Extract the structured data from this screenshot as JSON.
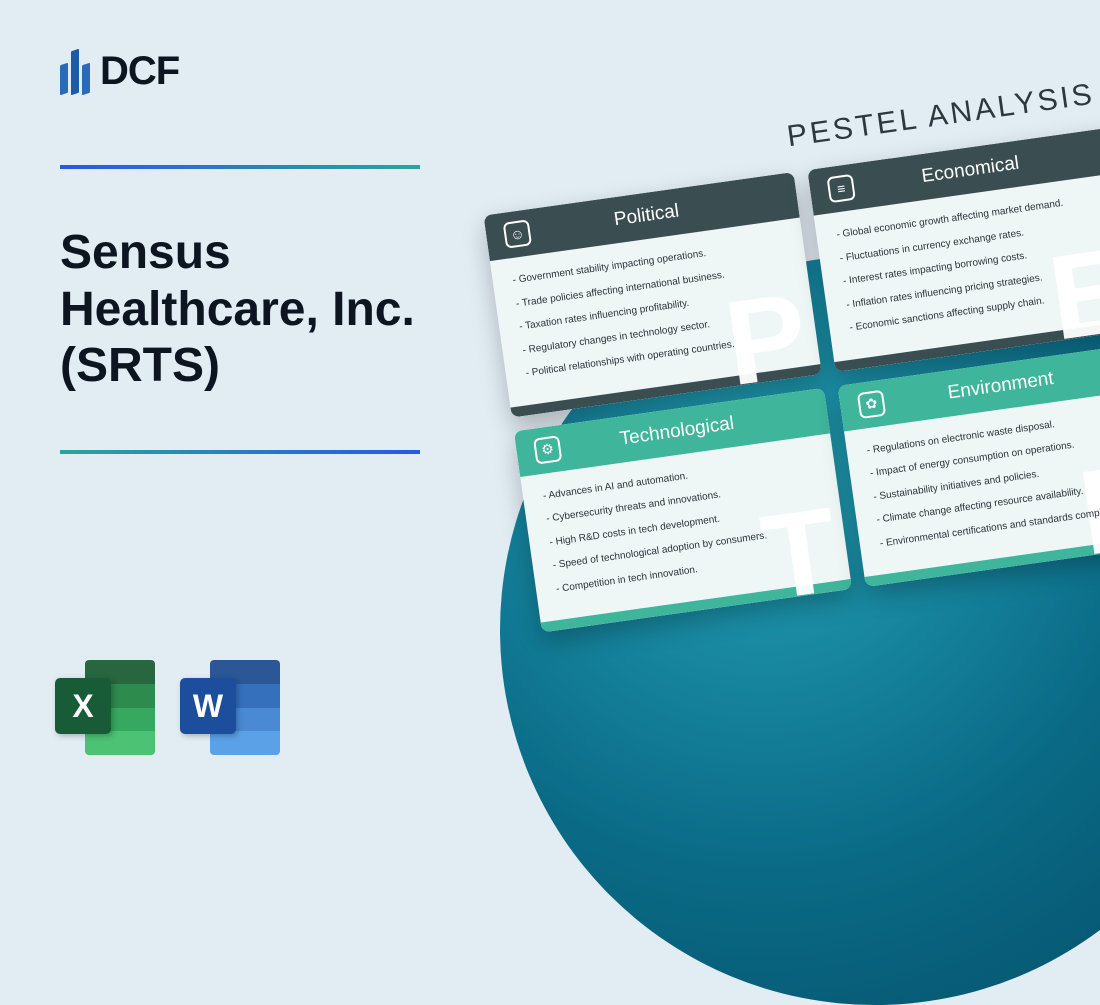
{
  "brand": {
    "name": "DCF"
  },
  "company_title": "Sensus Healthcare, Inc. (SRTS)",
  "apps": {
    "excel_letter": "X",
    "word_letter": "W"
  },
  "pestel": {
    "heading": "PESTEL ANALYSIS",
    "cards": [
      {
        "variant": "dark",
        "icon_glyph": "☺",
        "title": "Political",
        "watermark": "P",
        "items": [
          "Government stability impacting operations.",
          "Trade policies affecting international business.",
          "Taxation rates influencing profitability.",
          "Regulatory changes in technology sector.",
          "Political relationships with operating countries."
        ]
      },
      {
        "variant": "dark",
        "icon_glyph": "≡",
        "title": "Economical",
        "watermark": "E",
        "items": [
          "Global economic growth affecting market demand.",
          "Fluctuations in currency exchange rates.",
          "Interest rates impacting borrowing costs.",
          "Inflation rates influencing pricing strategies.",
          "Economic sanctions affecting supply chain."
        ]
      },
      {
        "variant": "teal",
        "icon_glyph": "⚙",
        "title": "Technological",
        "watermark": "T",
        "items": [
          "Advances in AI and automation.",
          "Cybersecurity threats and innovations.",
          "High R&D costs in tech development.",
          "Speed of technological adoption by consumers.",
          "Competition in tech innovation."
        ]
      },
      {
        "variant": "teal",
        "icon_glyph": "✿",
        "title": "Environment",
        "watermark": "E",
        "items": [
          "Regulations on electronic waste disposal.",
          "Impact of energy consumption on operations.",
          "Sustainability initiatives and policies.",
          "Climate change affecting resource availability.",
          "Environmental certifications and standards compliance."
        ]
      }
    ]
  },
  "colors": {
    "page_bg": "#e1ecf3",
    "grad_a": "#2758e8",
    "grad_b": "#2aa59a",
    "circle_inner": "#23a0b5",
    "circle_outer": "#044d66",
    "card_dark": "#3a4e52",
    "card_teal": "#3fb59b"
  }
}
